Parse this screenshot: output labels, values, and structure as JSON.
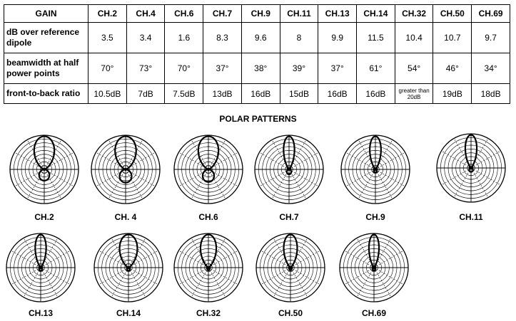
{
  "table": {
    "header_label": "GAIN",
    "channels": [
      "CH.2",
      "CH.4",
      "CH.6",
      "CH.7",
      "CH.9",
      "CH.11",
      "CH.13",
      "CH.14",
      "CH.32",
      "CH.50",
      "CH.69"
    ],
    "rows": [
      {
        "label": "dB over reference dipole",
        "values": [
          "3.5",
          "3.4",
          "1.6",
          "8.3",
          "9.6",
          "8",
          "9.9",
          "11.5",
          "10.4",
          "10.7",
          "9.7"
        ]
      },
      {
        "label": "beamwidth at half power points",
        "values": [
          "70°",
          "73°",
          "70°",
          "37°",
          "38°",
          "39°",
          "37°",
          "61°",
          "54°",
          "46°",
          "34°"
        ]
      },
      {
        "label": "front-to-back ratio",
        "values": [
          "10.5dB",
          "7dB",
          "7.5dB",
          "13dB",
          "16dB",
          "15dB",
          "16dB",
          "16dB",
          "greater than 20dB",
          "19dB",
          "18dB"
        ]
      }
    ]
  },
  "polar_title": "POLAR PATTERNS",
  "patterns": [
    {
      "label": "CH.2",
      "beamwidth_deg": 70,
      "back_lobe": 0.34
    },
    {
      "label": "CH. 4",
      "beamwidth_deg": 73,
      "back_lobe": 0.4
    },
    {
      "label": "CH.6",
      "beamwidth_deg": 70,
      "back_lobe": 0.38
    },
    {
      "label": "CH.7",
      "beamwidth_deg": 37,
      "back_lobe": 0.15
    },
    {
      "label": "CH.9",
      "beamwidth_deg": 38,
      "back_lobe": 0.1
    },
    {
      "label": "CH.11",
      "beamwidth_deg": 39,
      "back_lobe": 0.12
    },
    {
      "label": "CH.13",
      "beamwidth_deg": 37,
      "back_lobe": 0.1
    },
    {
      "label": "CH.14",
      "beamwidth_deg": 61,
      "back_lobe": 0.1
    },
    {
      "label": "CH.32",
      "beamwidth_deg": 54,
      "back_lobe": 0.08
    },
    {
      "label": "CH.50",
      "beamwidth_deg": 46,
      "back_lobe": 0.08
    },
    {
      "label": "CH.69",
      "beamwidth_deg": 34,
      "back_lobe": 0.09
    }
  ]
}
